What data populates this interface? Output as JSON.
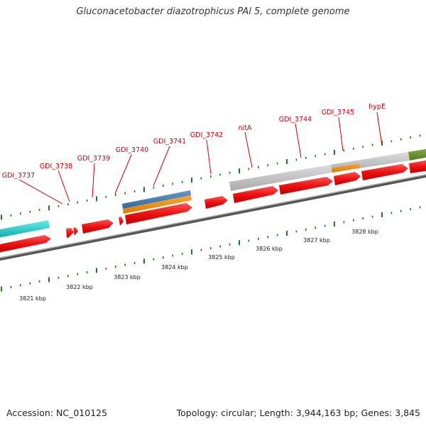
{
  "title": "Gluconacetobacter diazotrophicus PAl 5, complete genome",
  "footer": {
    "accession": "Accession: NC_010125",
    "topology": "Topology: circular; Length: 3,944,163 bp; Genes: 3,845"
  },
  "colors": {
    "gene_red": "#ee1111",
    "gene_label": "#cc0000",
    "tick_green": "#1a7a1a",
    "backbone": "#777777",
    "feature_cyan": "#22cccc",
    "feature_blue": "#4477aa",
    "feature_orange": "#ee8800",
    "feature_gray": "#bbbbbb",
    "feature_olive": "#6b8e23"
  },
  "gene_labels": [
    "GDI_3737",
    "GDI_3738",
    "GDI_3739",
    "GDI_3740",
    "GDI_3741",
    "GDI_3742",
    "nitA",
    "GDI_3744",
    "GDI_3745",
    "hypE"
  ],
  "kbp_labels": [
    "3821 kbp",
    "3822 kbp",
    "3823 kbp",
    "3824 kbp",
    "3825 kbp",
    "3826 kbp",
    "3827 kbp",
    "3828 kbp"
  ]
}
